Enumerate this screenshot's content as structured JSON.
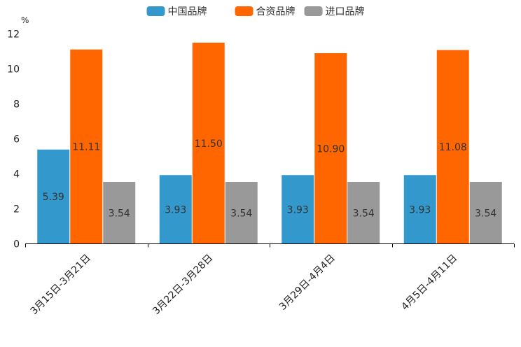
{
  "chart_data": {
    "type": "bar",
    "ylabel": "%",
    "ylim": [
      0,
      12
    ],
    "yticks": [
      0,
      2,
      4,
      6,
      8,
      10,
      12
    ],
    "categories": [
      "3月15日-3月21日",
      "3月22日-3月28日",
      "3月29日-4月4日",
      "4月5日-4月11日"
    ],
    "series": [
      {
        "name": "中国品牌",
        "color": "#3399cc",
        "values": [
          5.39,
          3.93,
          3.93,
          3.93
        ],
        "labels": [
          "5.39",
          "3.93",
          "3.93",
          "3.93"
        ]
      },
      {
        "name": "合资品牌",
        "color": "#ff6600",
        "values": [
          11.11,
          11.5,
          10.9,
          11.08
        ],
        "labels": [
          "11.11",
          "11.50",
          "10.90",
          "11.08"
        ]
      },
      {
        "name": "进口品牌",
        "color": "#999999",
        "values": [
          3.54,
          3.54,
          3.54,
          3.54
        ],
        "labels": [
          "3.54",
          "3.54",
          "3.54",
          "3.54"
        ]
      }
    ],
    "legend_position": "top-center",
    "grid": false
  }
}
